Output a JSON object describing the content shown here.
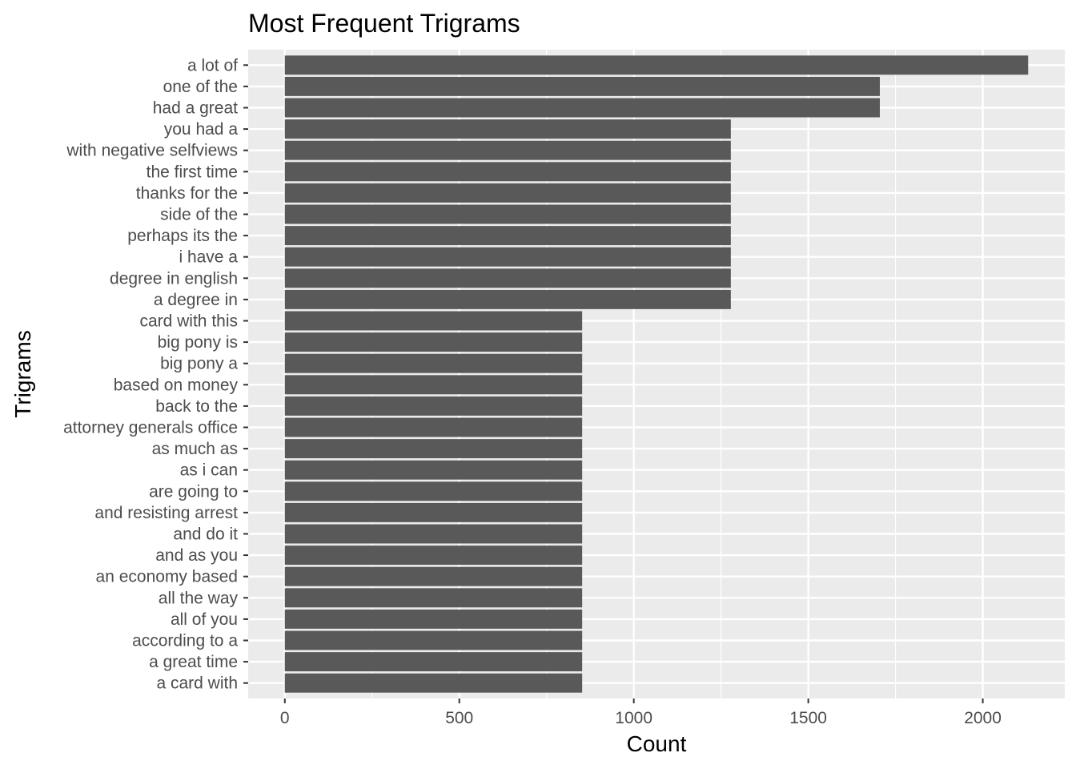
{
  "chart_data": {
    "type": "bar",
    "orientation": "horizontal",
    "title": "Most Frequent Trigrams",
    "xlabel": "Count",
    "ylabel": "Trigrams",
    "xlim": [
      -105,
      2235
    ],
    "x_ticks": [
      0,
      500,
      1000,
      1500,
      2000
    ],
    "grid": true,
    "bar_color": "#595959",
    "panel_background": "#ebebeb",
    "gridline_color": "#ffffff",
    "categories": [
      "a lot of",
      "one of the",
      "had a great",
      "you had a",
      "with negative selfviews",
      "the first time",
      "thanks for the",
      "side of the",
      "perhaps its the",
      "i have a",
      "degree in english",
      "a degree in",
      "card with this",
      "big pony is",
      "big pony a",
      "based on money",
      "back to the",
      "attorney generals office",
      "as much as",
      "as i can",
      "are going to",
      "and resisting arrest",
      "and do it",
      "and as you",
      "an economy based",
      "all the way",
      "all of you",
      "according to a",
      "a great time",
      "a card with"
    ],
    "values": [
      2130,
      1705,
      1705,
      1278,
      1278,
      1278,
      1278,
      1278,
      1278,
      1278,
      1278,
      1278,
      852,
      852,
      852,
      852,
      852,
      852,
      852,
      852,
      852,
      852,
      852,
      852,
      852,
      852,
      852,
      852,
      852,
      852
    ]
  }
}
